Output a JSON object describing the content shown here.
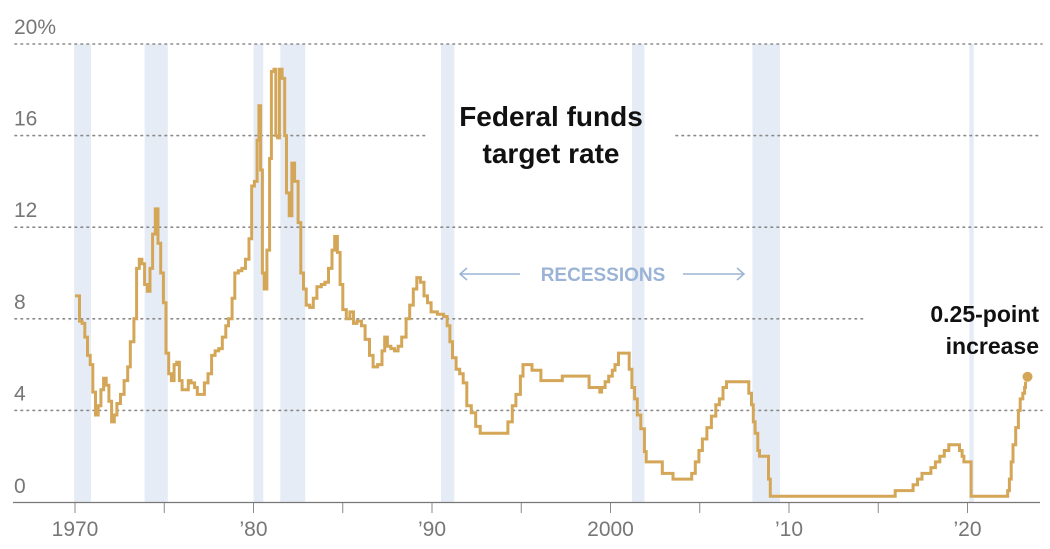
{
  "chart_data": {
    "type": "line",
    "title": "Federal funds target rate",
    "xlabel": "",
    "ylabel": "",
    "xlim": [
      1968.5,
      2024.4
    ],
    "ylim": [
      0,
      20
    ],
    "grid": true,
    "y_ticks": [
      {
        "value": 20,
        "label": "20%"
      },
      {
        "value": 16,
        "label": "16"
      },
      {
        "value": 12,
        "label": "12"
      },
      {
        "value": 8,
        "label": "8"
      },
      {
        "value": 4,
        "label": "4"
      },
      {
        "value": 0,
        "label": "0"
      }
    ],
    "x_ticks": [
      {
        "value": 1970,
        "label": "1970"
      },
      {
        "value": 1975,
        "label": ""
      },
      {
        "value": 1980,
        "label": "’80"
      },
      {
        "value": 1985,
        "label": ""
      },
      {
        "value": 1990,
        "label": "’90"
      },
      {
        "value": 1995,
        "label": ""
      },
      {
        "value": 2000,
        "label": "2000"
      },
      {
        "value": 2005,
        "label": ""
      },
      {
        "value": 2010,
        "label": "’10"
      },
      {
        "value": 2015,
        "label": ""
      },
      {
        "value": 2020,
        "label": "’20"
      }
    ],
    "recessions": [
      [
        1969.95,
        1970.9
      ],
      [
        1973.9,
        1975.2
      ],
      [
        1980.0,
        1980.55
      ],
      [
        1981.5,
        1982.9
      ],
      [
        1990.5,
        1991.25
      ],
      [
        2001.2,
        2001.9
      ],
      [
        2007.95,
        2009.5
      ],
      [
        2020.1,
        2020.35
      ]
    ],
    "recession_label": "RECESSIONS",
    "series": [
      {
        "name": "Federal funds target rate",
        "color": "#d4a657",
        "points": [
          [
            1970.0,
            9.0
          ],
          [
            1970.2,
            9.0
          ],
          [
            1970.25,
            7.9
          ],
          [
            1970.4,
            7.8
          ],
          [
            1970.55,
            7.2
          ],
          [
            1970.7,
            6.4
          ],
          [
            1970.85,
            6.0
          ],
          [
            1971.0,
            4.8
          ],
          [
            1971.15,
            3.8
          ],
          [
            1971.3,
            4.2
          ],
          [
            1971.45,
            4.9
          ],
          [
            1971.6,
            5.4
          ],
          [
            1971.75,
            5.1
          ],
          [
            1971.9,
            4.4
          ],
          [
            1972.05,
            3.5
          ],
          [
            1972.2,
            3.8
          ],
          [
            1972.35,
            4.3
          ],
          [
            1972.55,
            4.7
          ],
          [
            1972.75,
            5.3
          ],
          [
            1972.95,
            5.9
          ],
          [
            1973.1,
            7.0
          ],
          [
            1973.3,
            8.0
          ],
          [
            1973.45,
            10.2
          ],
          [
            1973.6,
            10.6
          ],
          [
            1973.75,
            10.4
          ],
          [
            1973.9,
            9.5
          ],
          [
            1974.05,
            9.2
          ],
          [
            1974.2,
            10.2
          ],
          [
            1974.35,
            11.7
          ],
          [
            1974.5,
            12.8
          ],
          [
            1974.65,
            11.3
          ],
          [
            1974.8,
            10.0
          ],
          [
            1974.95,
            8.7
          ],
          [
            1975.1,
            6.5
          ],
          [
            1975.25,
            5.6
          ],
          [
            1975.4,
            5.3
          ],
          [
            1975.55,
            6.0
          ],
          [
            1975.7,
            6.1
          ],
          [
            1975.85,
            5.3
          ],
          [
            1976.0,
            4.9
          ],
          [
            1976.2,
            4.9
          ],
          [
            1976.35,
            5.3
          ],
          [
            1976.5,
            5.2
          ],
          [
            1976.7,
            5.0
          ],
          [
            1976.85,
            4.7
          ],
          [
            1977.05,
            4.7
          ],
          [
            1977.25,
            5.2
          ],
          [
            1977.45,
            5.6
          ],
          [
            1977.65,
            6.4
          ],
          [
            1977.85,
            6.6
          ],
          [
            1978.05,
            6.7
          ],
          [
            1978.25,
            7.2
          ],
          [
            1978.45,
            7.7
          ],
          [
            1978.6,
            8.0
          ],
          [
            1978.8,
            8.9
          ],
          [
            1978.95,
            10.0
          ],
          [
            1979.15,
            10.1
          ],
          [
            1979.35,
            10.2
          ],
          [
            1979.55,
            10.6
          ],
          [
            1979.75,
            11.5
          ],
          [
            1979.9,
            13.8
          ],
          [
            1980.05,
            14.0
          ],
          [
            1980.2,
            15.8
          ],
          [
            1980.3,
            17.3
          ],
          [
            1980.4,
            14.5
          ],
          [
            1980.5,
            10.0
          ],
          [
            1980.6,
            9.3
          ],
          [
            1980.75,
            11.0
          ],
          [
            1980.9,
            15.0
          ],
          [
            1981.0,
            18.8
          ],
          [
            1981.15,
            18.9
          ],
          [
            1981.25,
            16.0
          ],
          [
            1981.35,
            15.9
          ],
          [
            1981.45,
            18.9
          ],
          [
            1981.6,
            18.5
          ],
          [
            1981.75,
            16.0
          ],
          [
            1981.85,
            13.5
          ],
          [
            1982.0,
            12.5
          ],
          [
            1982.15,
            14.8
          ],
          [
            1982.3,
            14.0
          ],
          [
            1982.5,
            12.2
          ],
          [
            1982.65,
            10.0
          ],
          [
            1982.8,
            9.3
          ],
          [
            1982.95,
            8.6
          ],
          [
            1983.15,
            8.5
          ],
          [
            1983.35,
            8.9
          ],
          [
            1983.55,
            9.4
          ],
          [
            1983.8,
            9.5
          ],
          [
            1984.0,
            9.6
          ],
          [
            1984.2,
            10.2
          ],
          [
            1984.4,
            11.0
          ],
          [
            1984.55,
            11.6
          ],
          [
            1984.7,
            10.9
          ],
          [
            1984.85,
            9.5
          ],
          [
            1985.0,
            8.4
          ],
          [
            1985.2,
            8.0
          ],
          [
            1985.4,
            8.3
          ],
          [
            1985.6,
            7.8
          ],
          [
            1985.8,
            7.9
          ],
          [
            1986.05,
            7.7
          ],
          [
            1986.25,
            7.1
          ],
          [
            1986.5,
            6.4
          ],
          [
            1986.7,
            5.9
          ],
          [
            1986.95,
            6.0
          ],
          [
            1987.2,
            6.6
          ],
          [
            1987.35,
            7.2
          ],
          [
            1987.5,
            6.8
          ],
          [
            1987.7,
            6.7
          ],
          [
            1987.9,
            6.6
          ],
          [
            1988.1,
            6.8
          ],
          [
            1988.3,
            7.2
          ],
          [
            1988.55,
            8.0
          ],
          [
            1988.75,
            8.6
          ],
          [
            1988.95,
            9.3
          ],
          [
            1989.15,
            9.8
          ],
          [
            1989.35,
            9.6
          ],
          [
            1989.55,
            9.0
          ],
          [
            1989.75,
            8.7
          ],
          [
            1989.95,
            8.3
          ],
          [
            1990.3,
            8.2
          ],
          [
            1990.65,
            8.1
          ],
          [
            1990.85,
            7.7
          ],
          [
            1991.0,
            7.0
          ],
          [
            1991.15,
            6.3
          ],
          [
            1991.35,
            5.8
          ],
          [
            1991.55,
            5.6
          ],
          [
            1991.75,
            5.2
          ],
          [
            1991.95,
            4.2
          ],
          [
            1992.2,
            3.9
          ],
          [
            1992.45,
            3.3
          ],
          [
            1992.7,
            3.0
          ],
          [
            1993.5,
            3.0
          ],
          [
            1994.1,
            3.0
          ],
          [
            1994.25,
            3.5
          ],
          [
            1994.5,
            4.2
          ],
          [
            1994.7,
            4.7
          ],
          [
            1994.95,
            5.5
          ],
          [
            1995.1,
            6.0
          ],
          [
            1995.5,
            6.0
          ],
          [
            1995.6,
            5.75
          ],
          [
            1996.0,
            5.75
          ],
          [
            1996.1,
            5.3
          ],
          [
            1997.2,
            5.3
          ],
          [
            1997.3,
            5.5
          ],
          [
            1998.7,
            5.5
          ],
          [
            1998.8,
            5.0
          ],
          [
            1999.4,
            4.8
          ],
          [
            1999.5,
            5.0
          ],
          [
            1999.7,
            5.25
          ],
          [
            1999.9,
            5.5
          ],
          [
            2000.1,
            5.75
          ],
          [
            2000.25,
            6.0
          ],
          [
            2000.45,
            6.5
          ],
          [
            2000.95,
            6.5
          ],
          [
            2001.05,
            5.8
          ],
          [
            2001.2,
            5.0
          ],
          [
            2001.35,
            4.5
          ],
          [
            2001.5,
            3.8
          ],
          [
            2001.7,
            3.2
          ],
          [
            2001.9,
            2.2
          ],
          [
            2002.0,
            1.75
          ],
          [
            2002.8,
            1.75
          ],
          [
            2002.9,
            1.25
          ],
          [
            2003.45,
            1.25
          ],
          [
            2003.5,
            1.0
          ],
          [
            2004.45,
            1.0
          ],
          [
            2004.55,
            1.25
          ],
          [
            2004.75,
            1.75
          ],
          [
            2004.95,
            2.25
          ],
          [
            2005.15,
            2.75
          ],
          [
            2005.4,
            3.25
          ],
          [
            2005.65,
            3.75
          ],
          [
            2005.9,
            4.25
          ],
          [
            2006.1,
            4.5
          ],
          [
            2006.3,
            5.0
          ],
          [
            2006.5,
            5.25
          ],
          [
            2007.6,
            5.25
          ],
          [
            2007.75,
            4.75
          ],
          [
            2007.9,
            4.25
          ],
          [
            2008.0,
            3.5
          ],
          [
            2008.1,
            3.0
          ],
          [
            2008.25,
            2.25
          ],
          [
            2008.35,
            2.0
          ],
          [
            2008.8,
            2.0
          ],
          [
            2008.85,
            1.0
          ],
          [
            2008.95,
            0.25
          ],
          [
            2015.9,
            0.25
          ],
          [
            2015.95,
            0.5
          ],
          [
            2016.9,
            0.5
          ],
          [
            2016.95,
            0.75
          ],
          [
            2017.2,
            1.0
          ],
          [
            2017.45,
            1.25
          ],
          [
            2017.95,
            1.5
          ],
          [
            2018.2,
            1.75
          ],
          [
            2018.45,
            2.0
          ],
          [
            2018.7,
            2.25
          ],
          [
            2018.95,
            2.5
          ],
          [
            2019.5,
            2.5
          ],
          [
            2019.55,
            2.25
          ],
          [
            2019.7,
            2.0
          ],
          [
            2019.8,
            1.75
          ],
          [
            2020.15,
            1.75
          ],
          [
            2020.2,
            0.25
          ],
          [
            2022.2,
            0.25
          ],
          [
            2022.25,
            0.5
          ],
          [
            2022.35,
            1.0
          ],
          [
            2022.45,
            1.75
          ],
          [
            2022.55,
            2.5
          ],
          [
            2022.7,
            3.25
          ],
          [
            2022.85,
            4.0
          ],
          [
            2022.95,
            4.5
          ],
          [
            2023.1,
            4.75
          ],
          [
            2023.2,
            5.0
          ]
        ],
        "endpoint": [
          2023.25,
          5.25
        ]
      }
    ],
    "annotations": [
      {
        "text_lines": [
          "0.25-point",
          "increase"
        ],
        "anchor": "endpoint"
      }
    ]
  }
}
